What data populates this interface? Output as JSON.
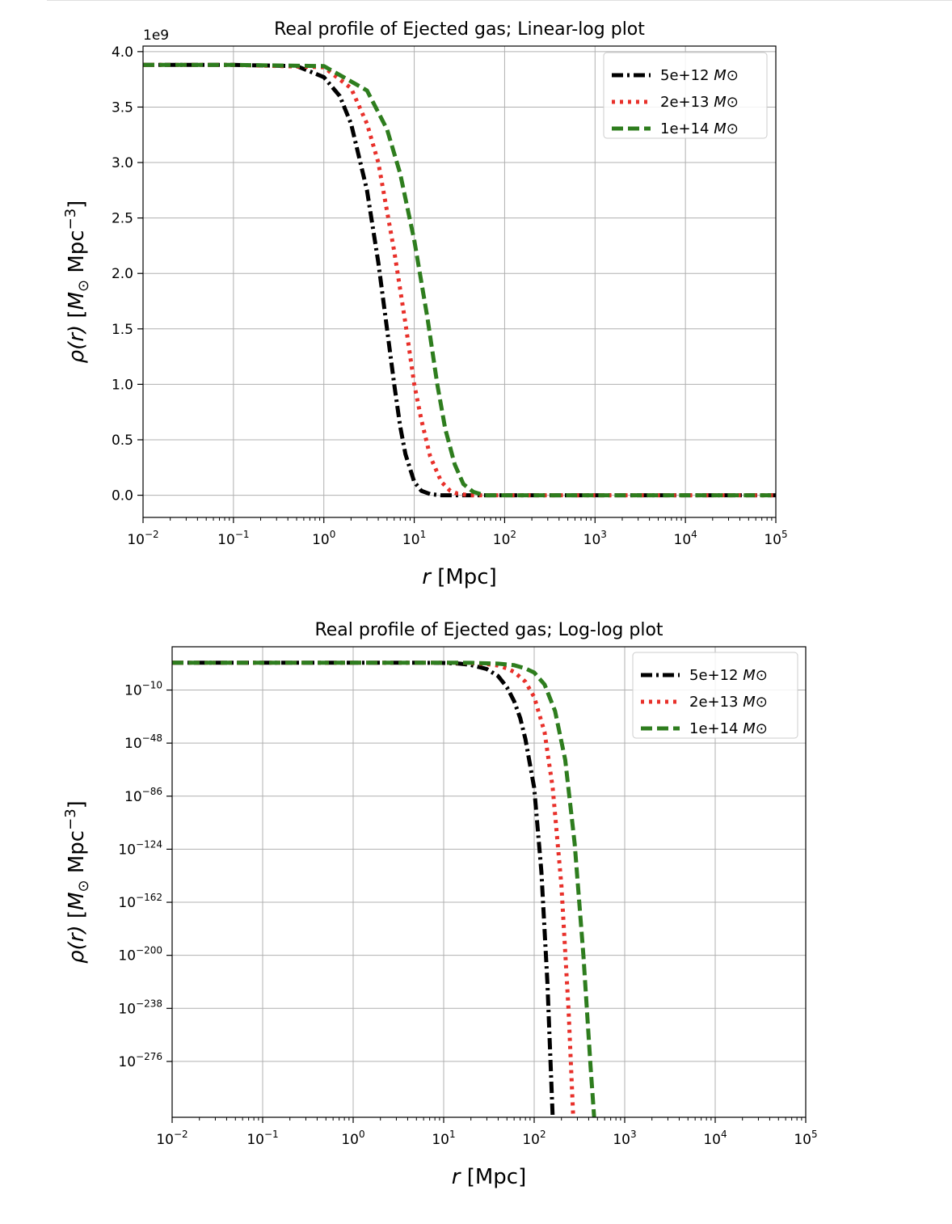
{
  "chart_data": [
    {
      "type": "line",
      "title": "Real profile of Ejected gas; Linear-log plot",
      "xlabel": "r [Mpc]",
      "ylabel": "ρ(r) [M⊙ Mpc⁻³]",
      "xscale": "log",
      "yscale": "linear",
      "y_offset_label": "1e9",
      "xlim": [
        0.01,
        100000
      ],
      "ylim": [
        -0.2,
        4.05
      ],
      "xticks": [
        {
          "value": 0.01,
          "label": "10−2"
        },
        {
          "value": 0.1,
          "label": "10−1"
        },
        {
          "value": 1,
          "label": "100"
        },
        {
          "value": 10,
          "label": "101"
        },
        {
          "value": 100,
          "label": "102"
        },
        {
          "value": 1000,
          "label": "103"
        },
        {
          "value": 10000,
          "label": "104"
        },
        {
          "value": 100000,
          "label": "105"
        }
      ],
      "yticks": [
        {
          "value": 0.0,
          "label": "0.0"
        },
        {
          "value": 0.5,
          "label": "0.5"
        },
        {
          "value": 1.0,
          "label": "1.0"
        },
        {
          "value": 1.5,
          "label": "1.5"
        },
        {
          "value": 2.0,
          "label": "2.0"
        },
        {
          "value": 2.5,
          "label": "2.5"
        },
        {
          "value": 3.0,
          "label": "3.0"
        },
        {
          "value": 3.5,
          "label": "3.5"
        },
        {
          "value": 4.0,
          "label": "4.0"
        }
      ],
      "grid": true,
      "legend_position": "upper right",
      "series": [
        {
          "name": "5e+12 M⊙",
          "color": "#000000",
          "style": "dashdot",
          "x": [
            0.01,
            0.1,
            0.5,
            1,
            1.5,
            2,
            3,
            4,
            5,
            6,
            7,
            8,
            10,
            12,
            15,
            20,
            30,
            100,
            100000
          ],
          "y": [
            3.88,
            3.88,
            3.87,
            3.77,
            3.6,
            3.35,
            2.75,
            2.1,
            1.5,
            1.0,
            0.62,
            0.37,
            0.12,
            0.04,
            0.01,
            0.0,
            0.0,
            0.0,
            0.0
          ]
        },
        {
          "name": "2e+13 M⊙",
          "color": "#e8302a",
          "style": "dotted",
          "x": [
            0.01,
            0.1,
            1,
            2,
            3,
            4,
            6,
            8,
            10,
            12,
            15,
            20,
            25,
            30,
            40,
            100,
            100000
          ],
          "y": [
            3.88,
            3.88,
            3.86,
            3.67,
            3.35,
            3.0,
            2.2,
            1.55,
            1.0,
            0.68,
            0.35,
            0.12,
            0.04,
            0.015,
            0.0,
            0.0,
            0.0
          ]
        },
        {
          "name": "1e+14 M⊙",
          "color": "#2e7d1e",
          "style": "dashed",
          "x": [
            0.01,
            0.1,
            1,
            3,
            5,
            7,
            10,
            14,
            18,
            22,
            28,
            35,
            45,
            60,
            100,
            100000
          ],
          "y": [
            3.88,
            3.88,
            3.87,
            3.65,
            3.3,
            2.9,
            2.3,
            1.6,
            1.0,
            0.6,
            0.28,
            0.1,
            0.03,
            0.0,
            0.0,
            0.0
          ]
        }
      ]
    },
    {
      "type": "line",
      "title": "Real profile of Ejected gas; Log-log plot",
      "xlabel": "r [Mpc]",
      "ylabel": "ρ(r) [M⊙ Mpc⁻³]",
      "xscale": "log",
      "yscale": "log",
      "xlim": [
        0.01,
        100000
      ],
      "ylim_log10": [
        -316,
        21
      ],
      "xticks": [
        {
          "value": 0.01,
          "label": "10−2"
        },
        {
          "value": 0.1,
          "label": "10−1"
        },
        {
          "value": 1,
          "label": "100"
        },
        {
          "value": 10,
          "label": "101"
        },
        {
          "value": 100,
          "label": "102"
        },
        {
          "value": 1000,
          "label": "103"
        },
        {
          "value": 10000,
          "label": "104"
        },
        {
          "value": 100000,
          "label": "105"
        }
      ],
      "yticks": [
        {
          "log10": -10,
          "label": "10−10"
        },
        {
          "log10": -48,
          "label": "10−48"
        },
        {
          "log10": -86,
          "label": "10−86"
        },
        {
          "log10": -124,
          "label": "10−124"
        },
        {
          "log10": -162,
          "label": "10−162"
        },
        {
          "log10": -200,
          "label": "10−200"
        },
        {
          "log10": -238,
          "label": "10−238"
        },
        {
          "log10": -276,
          "label": "10−276"
        }
      ],
      "grid": true,
      "legend_position": "upper right",
      "series": [
        {
          "name": "5e+12 M⊙",
          "color": "#000000",
          "style": "dashdot",
          "x": [
            0.01,
            1,
            5,
            10,
            15,
            20,
            30,
            40,
            50,
            60,
            70,
            80,
            100,
            120,
            140,
            160
          ],
          "y_log10": [
            9.6,
            9.6,
            9.6,
            9.4,
            8.9,
            8.0,
            5.0,
            0.0,
            -8.0,
            -18.0,
            -30.0,
            -45.0,
            -80.0,
            -140.0,
            -220.0,
            -316.0
          ]
        },
        {
          "name": "2e+13 M⊙",
          "color": "#e8302a",
          "style": "dotted",
          "x": [
            0.01,
            1,
            10,
            20,
            30,
            40,
            50,
            60,
            80,
            100,
            130,
            160,
            200,
            240,
            270
          ],
          "y_log10": [
            9.6,
            9.6,
            9.6,
            9.3,
            8.6,
            7.5,
            5.5,
            3.0,
            -4.0,
            -15.0,
            -40.0,
            -80.0,
            -150.0,
            -240.0,
            -316.0
          ]
        },
        {
          "name": "1e+14 M⊙",
          "color": "#2e7d1e",
          "style": "dashed",
          "x": [
            0.01,
            1,
            10,
            20,
            40,
            60,
            80,
            100,
            130,
            170,
            220,
            280,
            350,
            420,
            460
          ],
          "y_log10": [
            9.6,
            9.6,
            9.6,
            9.5,
            8.9,
            7.8,
            5.5,
            2.5,
            -6.0,
            -25.0,
            -60.0,
            -120.0,
            -200.0,
            -280.0,
            -316.0
          ]
        }
      ]
    }
  ]
}
